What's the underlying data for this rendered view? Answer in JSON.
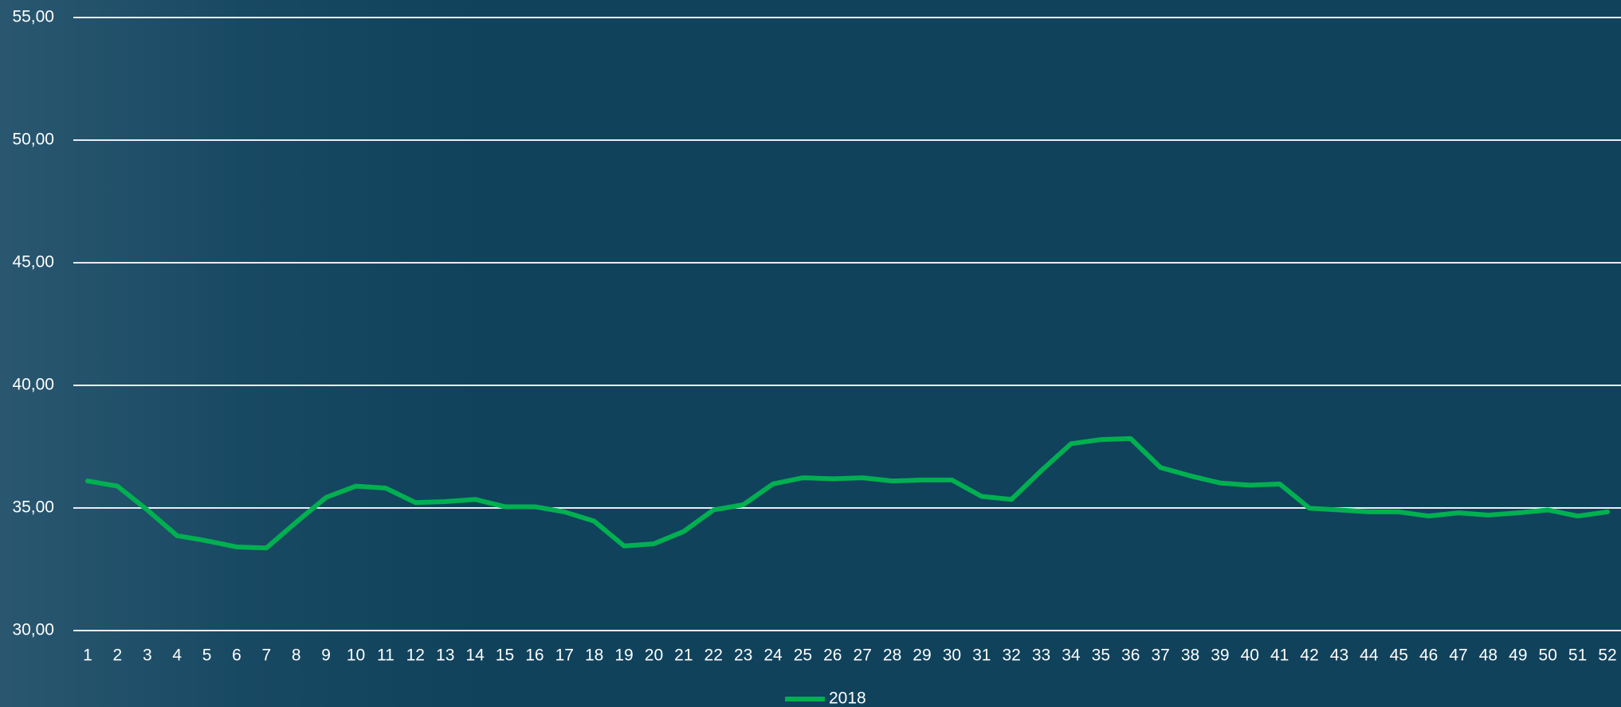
{
  "chart_data": {
    "type": "line",
    "categories": [
      "1",
      "2",
      "3",
      "4",
      "5",
      "6",
      "7",
      "8",
      "9",
      "10",
      "11",
      "12",
      "13",
      "14",
      "15",
      "16",
      "17",
      "18",
      "19",
      "20",
      "21",
      "22",
      "23",
      "24",
      "25",
      "26",
      "27",
      "28",
      "29",
      "30",
      "31",
      "32",
      "33",
      "34",
      "35",
      "36",
      "37",
      "38",
      "39",
      "40",
      "41",
      "42",
      "43",
      "44",
      "45",
      "46",
      "47",
      "48",
      "49",
      "50",
      "51",
      "52"
    ],
    "series": [
      {
        "name": "2018",
        "color": "#00b050",
        "values": [
          36.1,
          35.89,
          34.92,
          33.87,
          33.66,
          33.41,
          33.37,
          34.42,
          35.43,
          35.89,
          35.81,
          35.22,
          35.26,
          35.35,
          35.05,
          35.05,
          34.84,
          34.46,
          33.45,
          33.54,
          34.04,
          34.92,
          35.13,
          35.98,
          36.23,
          36.19,
          36.23,
          36.1,
          36.14,
          36.14,
          35.47,
          35.35,
          36.52,
          37.62,
          37.79,
          37.83,
          36.65,
          36.31,
          36.02,
          35.93,
          35.98,
          34.99,
          34.92,
          34.84,
          34.84,
          34.67,
          34.8,
          34.71,
          34.8,
          34.92,
          34.67,
          34.84
        ]
      }
    ],
    "ylim": [
      30,
      55
    ],
    "yticks": [
      {
        "value": 30,
        "label": "30,00"
      },
      {
        "value": 35,
        "label": "35,00"
      },
      {
        "value": 40,
        "label": "40,00"
      },
      {
        "value": 45,
        "label": "45,00"
      },
      {
        "value": 50,
        "label": "50,00"
      },
      {
        "value": 55,
        "label": "55,00"
      }
    ],
    "grid": true,
    "legend": "bottom"
  }
}
